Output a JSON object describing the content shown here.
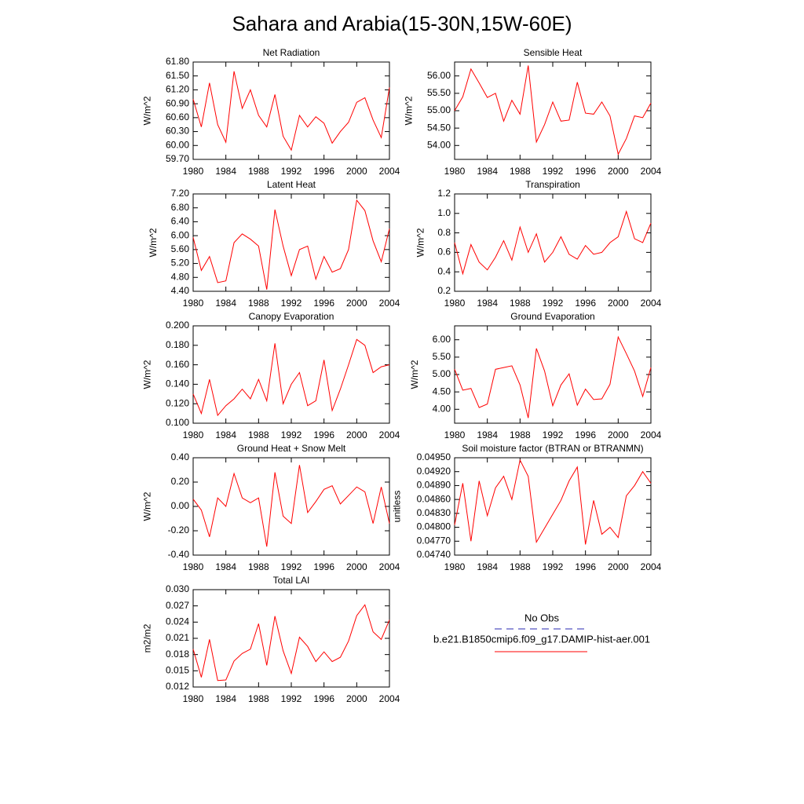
{
  "title": "Sahara and Arabia(15-30N,15W-60E)",
  "legend": {
    "entries": [
      {
        "name": "No Obs",
        "color": "#2a2ab0",
        "dash": true
      },
      {
        "name": "b.e21.B1850cmip6.f09_g17.DAMIP-hist-aer.001",
        "color": "#ff0000",
        "dash": false
      }
    ]
  },
  "chart_data": [
    {
      "type": "line",
      "title": "Net Radiation",
      "ylabel": "W/m^2",
      "color": "#ff0000",
      "x": [
        1980,
        1981,
        1982,
        1983,
        1984,
        1985,
        1986,
        1987,
        1988,
        1989,
        1990,
        1991,
        1992,
        1993,
        1994,
        1995,
        1996,
        1997,
        1998,
        1999,
        2000,
        2001,
        2002,
        2003,
        2004
      ],
      "values": [
        61.0,
        60.4,
        61.35,
        60.45,
        60.07,
        61.6,
        60.8,
        61.2,
        60.65,
        60.4,
        61.1,
        60.2,
        59.9,
        60.65,
        60.4,
        60.62,
        60.48,
        60.05,
        60.3,
        60.5,
        60.93,
        61.03,
        60.55,
        60.17,
        61.25
      ],
      "xlim": [
        1980,
        2004
      ],
      "xticks": [
        1980,
        1984,
        1988,
        1992,
        1996,
        2000,
        2004
      ],
      "ylim": [
        59.7,
        61.8
      ],
      "yticks": [
        {
          "value": 59.7,
          "label": "59.70"
        },
        {
          "value": 60.0,
          "label": "60.00"
        },
        {
          "value": 60.3,
          "label": "60.30"
        },
        {
          "value": 60.6,
          "label": "60.60"
        },
        {
          "value": 60.9,
          "label": "60.90"
        },
        {
          "value": 61.2,
          "label": "61.20"
        },
        {
          "value": 61.5,
          "label": "61.50"
        },
        {
          "value": 61.8,
          "label": "61.80"
        }
      ]
    },
    {
      "type": "line",
      "title": "Sensible Heat",
      "ylabel": "W/m^2",
      "color": "#ff0000",
      "x": [
        1980,
        1981,
        1982,
        1983,
        1984,
        1985,
        1986,
        1987,
        1988,
        1989,
        1990,
        1991,
        1992,
        1993,
        1994,
        1995,
        1996,
        1997,
        1998,
        1999,
        2000,
        2001,
        2002,
        2003,
        2004
      ],
      "values": [
        55.0,
        55.4,
        56.2,
        55.8,
        55.38,
        55.5,
        54.7,
        55.3,
        54.9,
        56.3,
        54.1,
        54.6,
        55.25,
        54.7,
        54.73,
        55.82,
        54.93,
        54.9,
        55.25,
        54.85,
        53.75,
        54.2,
        54.85,
        54.8,
        55.22
      ],
      "xlim": [
        1980,
        2004
      ],
      "xticks": [
        1980,
        1984,
        1988,
        1992,
        1996,
        2000,
        2004
      ],
      "ylim": [
        53.6,
        56.4
      ],
      "yticks": [
        {
          "value": 54.0,
          "label": "54.00"
        },
        {
          "value": 54.5,
          "label": "54.50"
        },
        {
          "value": 55.0,
          "label": "55.00"
        },
        {
          "value": 55.5,
          "label": "55.50"
        },
        {
          "value": 56.0,
          "label": "56.00"
        }
      ]
    },
    {
      "type": "line",
      "title": "Latent Heat",
      "ylabel": "W/m^2",
      "color": "#ff0000",
      "x": [
        1980,
        1981,
        1982,
        1983,
        1984,
        1985,
        1986,
        1987,
        1988,
        1989,
        1990,
        1991,
        1992,
        1993,
        1994,
        1995,
        1996,
        1997,
        1998,
        1999,
        2000,
        2001,
        2002,
        2003,
        2004
      ],
      "values": [
        5.95,
        5.0,
        5.4,
        4.65,
        4.7,
        5.8,
        6.05,
        5.9,
        5.7,
        4.45,
        6.75,
        5.7,
        4.85,
        5.6,
        5.7,
        4.75,
        5.4,
        4.95,
        5.05,
        5.6,
        7.02,
        6.72,
        5.85,
        5.25,
        6.2
      ],
      "xlim": [
        1980,
        2004
      ],
      "xticks": [
        1980,
        1984,
        1988,
        1992,
        1996,
        2000,
        2004
      ],
      "ylim": [
        4.4,
        7.2
      ],
      "yticks": [
        {
          "value": 4.4,
          "label": "4.40"
        },
        {
          "value": 4.8,
          "label": "4.80"
        },
        {
          "value": 5.2,
          "label": "5.20"
        },
        {
          "value": 5.6,
          "label": "5.60"
        },
        {
          "value": 6.0,
          "label": "6.00"
        },
        {
          "value": 6.4,
          "label": "6.40"
        },
        {
          "value": 6.8,
          "label": "6.80"
        },
        {
          "value": 7.2,
          "label": "7.20"
        }
      ]
    },
    {
      "type": "line",
      "title": "Transpiration",
      "ylabel": "W/m^2",
      "color": "#ff0000",
      "x": [
        1980,
        1981,
        1982,
        1983,
        1984,
        1985,
        1986,
        1987,
        1988,
        1989,
        1990,
        1991,
        1992,
        1993,
        1994,
        1995,
        1996,
        1997,
        1998,
        1999,
        2000,
        2001,
        2002,
        2003,
        2004
      ],
      "values": [
        0.7,
        0.38,
        0.68,
        0.5,
        0.42,
        0.55,
        0.72,
        0.52,
        0.86,
        0.6,
        0.79,
        0.5,
        0.6,
        0.76,
        0.58,
        0.53,
        0.67,
        0.58,
        0.6,
        0.7,
        0.76,
        1.02,
        0.74,
        0.7,
        0.9
      ],
      "xlim": [
        1980,
        2004
      ],
      "xticks": [
        1980,
        1984,
        1988,
        1992,
        1996,
        2000,
        2004
      ],
      "ylim": [
        0.2,
        1.2
      ],
      "yticks": [
        0.2,
        0.4,
        0.6,
        0.8,
        {
          "value": 1.0,
          "label": "1.0"
        },
        1.2
      ]
    },
    {
      "type": "line",
      "title": "Canopy Evaporation",
      "ylabel": "W/m^2",
      "color": "#ff0000",
      "x": [
        1980,
        1981,
        1982,
        1983,
        1984,
        1985,
        1986,
        1987,
        1988,
        1989,
        1990,
        1991,
        1992,
        1993,
        1994,
        1995,
        1996,
        1997,
        1998,
        1999,
        2000,
        2001,
        2002,
        2003,
        2004
      ],
      "values": [
        0.13,
        0.11,
        0.145,
        0.108,
        0.118,
        0.125,
        0.135,
        0.125,
        0.145,
        0.123,
        0.182,
        0.12,
        0.14,
        0.152,
        0.118,
        0.123,
        0.165,
        0.113,
        0.135,
        0.16,
        0.186,
        0.18,
        0.152,
        0.158,
        0.16
      ],
      "xlim": [
        1980,
        2004
      ],
      "xticks": [
        1980,
        1984,
        1988,
        1992,
        1996,
        2000,
        2004
      ],
      "ylim": [
        0.1,
        0.2
      ],
      "yticks": [
        {
          "value": 0.1,
          "label": "0.100"
        },
        {
          "value": 0.12,
          "label": "0.120"
        },
        {
          "value": 0.14,
          "label": "0.140"
        },
        {
          "value": 0.16,
          "label": "0.160"
        },
        {
          "value": 0.18,
          "label": "0.180"
        },
        {
          "value": 0.2,
          "label": "0.200"
        }
      ]
    },
    {
      "type": "line",
      "title": "Ground Evaporation",
      "ylabel": "W/m^2",
      "color": "#ff0000",
      "x": [
        1980,
        1981,
        1982,
        1983,
        1984,
        1985,
        1986,
        1987,
        1988,
        1989,
        1990,
        1991,
        1992,
        1993,
        1994,
        1995,
        1996,
        1997,
        1998,
        1999,
        2000,
        2001,
        2002,
        2003,
        2004
      ],
      "values": [
        5.15,
        4.55,
        4.6,
        4.05,
        4.15,
        5.15,
        5.2,
        5.25,
        4.7,
        3.75,
        5.75,
        5.1,
        4.1,
        4.7,
        5.02,
        4.12,
        4.58,
        4.28,
        4.3,
        4.72,
        6.08,
        5.6,
        5.1,
        4.37,
        5.2
      ],
      "xlim": [
        1980,
        2004
      ],
      "xticks": [
        1980,
        1984,
        1988,
        1992,
        1996,
        2000,
        2004
      ],
      "ylim": [
        3.6,
        6.4
      ],
      "yticks": [
        {
          "value": 4.0,
          "label": "4.00"
        },
        {
          "value": 4.5,
          "label": "4.50"
        },
        {
          "value": 5.0,
          "label": "5.00"
        },
        {
          "value": 5.5,
          "label": "5.50"
        },
        {
          "value": 6.0,
          "label": "6.00"
        }
      ]
    },
    {
      "type": "line",
      "title": "Ground Heat + Snow Melt",
      "ylabel": "W/m^2",
      "color": "#ff0000",
      "x": [
        1980,
        1981,
        1982,
        1983,
        1984,
        1985,
        1986,
        1987,
        1988,
        1989,
        1990,
        1991,
        1992,
        1993,
        1994,
        1995,
        1996,
        1997,
        1998,
        1999,
        2000,
        2001,
        2002,
        2003,
        2004
      ],
      "values": [
        0.06,
        -0.03,
        -0.25,
        0.07,
        0.0,
        0.27,
        0.07,
        0.03,
        0.07,
        -0.33,
        0.28,
        -0.08,
        -0.14,
        0.34,
        -0.05,
        0.04,
        0.14,
        0.17,
        0.02,
        0.09,
        0.16,
        0.12,
        -0.14,
        0.16,
        -0.14
      ],
      "xlim": [
        1980,
        2004
      ],
      "xticks": [
        1980,
        1984,
        1988,
        1992,
        1996,
        2000,
        2004
      ],
      "ylim": [
        -0.4,
        0.4
      ],
      "yticks": [
        {
          "value": -0.4,
          "label": "-0.40"
        },
        {
          "value": -0.2,
          "label": "-0.20"
        },
        {
          "value": 0.0,
          "label": "0.00"
        },
        {
          "value": 0.2,
          "label": "0.20"
        },
        {
          "value": 0.4,
          "label": "0.40"
        }
      ]
    },
    {
      "type": "line",
      "title": "Soil moisture factor (BTRAN or BTRANMN)",
      "ylabel": "unitless",
      "color": "#ff0000",
      "x": [
        1980,
        1981,
        1982,
        1983,
        1984,
        1985,
        1986,
        1987,
        1988,
        1989,
        1990,
        1991,
        1992,
        1993,
        1994,
        1995,
        1996,
        1997,
        1998,
        1999,
        2000,
        2001,
        2002,
        2003,
        2004
      ],
      "values": [
        0.04805,
        0.04895,
        0.0477,
        0.049,
        0.04825,
        0.04885,
        0.0491,
        0.0486,
        0.04945,
        0.0491,
        0.04768,
        0.04798,
        0.04828,
        0.04858,
        0.049,
        0.0493,
        0.04763,
        0.04858,
        0.04785,
        0.048,
        0.04778,
        0.04868,
        0.0489,
        0.0492,
        0.04895
      ],
      "xlim": [
        1980,
        2004
      ],
      "xticks": [
        1980,
        1984,
        1988,
        1992,
        1996,
        2000,
        2004
      ],
      "ylim": [
        0.0474,
        0.0495
      ],
      "yticks": [
        {
          "value": 0.0474,
          "label": "0.04740"
        },
        {
          "value": 0.0477,
          "label": "0.04770"
        },
        {
          "value": 0.048,
          "label": "0.04800"
        },
        {
          "value": 0.0483,
          "label": "0.04830"
        },
        {
          "value": 0.0486,
          "label": "0.04860"
        },
        {
          "value": 0.0489,
          "label": "0.04890"
        },
        {
          "value": 0.0492,
          "label": "0.04920"
        },
        {
          "value": 0.0495,
          "label": "0.04950"
        }
      ]
    },
    {
      "type": "line",
      "title": "Total LAI",
      "ylabel": "m2/m2",
      "color": "#ff0000",
      "x": [
        1980,
        1981,
        1982,
        1983,
        1984,
        1985,
        1986,
        1987,
        1988,
        1989,
        1990,
        1991,
        1992,
        1993,
        1994,
        1995,
        1996,
        1997,
        1998,
        1999,
        2000,
        2001,
        2002,
        2003,
        2004
      ],
      "values": [
        0.019,
        0.0138,
        0.0208,
        0.0132,
        0.0133,
        0.0168,
        0.0182,
        0.019,
        0.0237,
        0.016,
        0.0251,
        0.0187,
        0.0145,
        0.0212,
        0.0195,
        0.0167,
        0.0185,
        0.0167,
        0.0175,
        0.0205,
        0.0252,
        0.0272,
        0.0222,
        0.0208,
        0.0244
      ],
      "xlim": [
        1980,
        2004
      ],
      "xticks": [
        1980,
        1984,
        1988,
        1992,
        1996,
        2000,
        2004
      ],
      "ylim": [
        0.012,
        0.03
      ],
      "yticks": [
        0.012,
        0.015,
        0.018,
        0.021,
        0.024,
        0.027,
        {
          "value": 0.03,
          "label": "0.030"
        }
      ]
    }
  ]
}
